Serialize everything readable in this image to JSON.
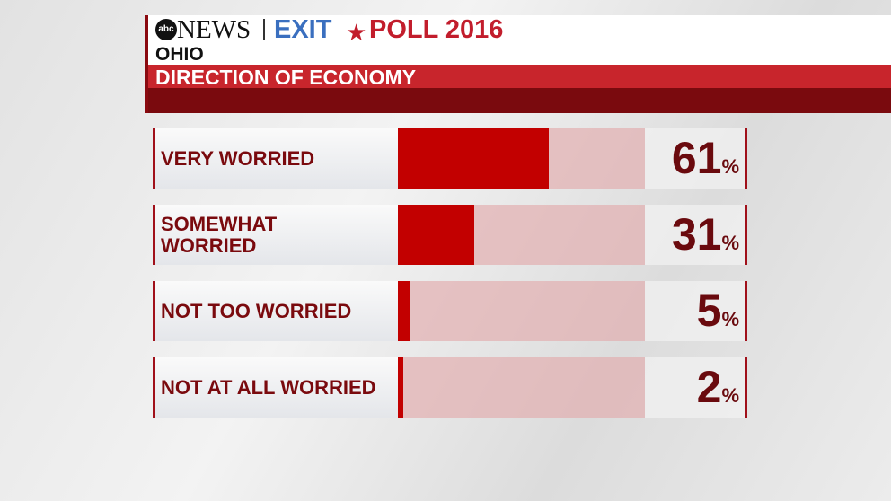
{
  "header": {
    "logo": "abc",
    "network": "NEWS",
    "exit": "EXIT",
    "poll": "POLL 2016"
  },
  "chart_data": {
    "type": "bar",
    "orientation": "horizontal",
    "subtitle": "OHIO",
    "title": "DIRECTION OF ECONOMY",
    "categories": [
      "VERY WORRIED",
      "SOMEWHAT\nWORRIED",
      "NOT TOO WORRIED",
      "NOT AT ALL WORRIED"
    ],
    "values": [
      61,
      31,
      5,
      2
    ],
    "value_labels": [
      "61%",
      "31%",
      "5%",
      "2%"
    ],
    "color": "#c20000",
    "xlim": [
      0,
      100
    ]
  }
}
